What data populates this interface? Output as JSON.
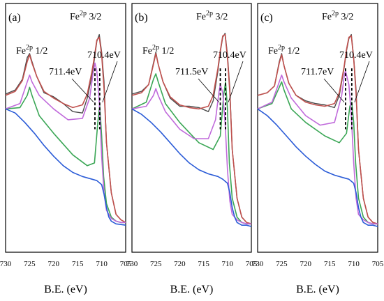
{
  "chart_data": [
    {
      "type": "line",
      "panel_label": "(a)",
      "xlabel": "B.E. (eV)",
      "x_ticks": [
        730,
        725,
        720,
        715,
        710,
        705
      ],
      "xlim": [
        730,
        705
      ],
      "x_reversed": true,
      "annotations": {
        "fe_3_2": {
          "base": "Fe",
          "sup": "2p",
          "suffix": " 3/2"
        },
        "fe_1_2": {
          "base": "Fe",
          "sup": "2p",
          "suffix": " 1/2"
        },
        "peak_high": "711.4eV",
        "peak_low": "710.4eV"
      },
      "peak_markers_eV": [
        711.4,
        710.4
      ],
      "series": [
        {
          "role": "raw-data",
          "color": "#4d4d4d",
          "x": [
            730,
            728,
            726.5,
            725.5,
            725,
            724.5,
            723.5,
            722,
            720,
            718,
            716,
            714,
            713,
            712,
            711.5,
            711,
            710.5,
            710,
            709.5,
            709,
            708,
            707,
            706,
            705
          ],
          "y": [
            0.11,
            0.14,
            0.22,
            0.38,
            0.41,
            0.35,
            0.24,
            0.12,
            0.09,
            0.04,
            -0.02,
            -0.03,
            0.08,
            0.25,
            0.37,
            0.5,
            0.55,
            0.42,
            0.2,
            -0.25,
            -0.62,
            -0.78,
            -0.82,
            -0.84
          ]
        },
        {
          "role": "envelope",
          "color": "#c0504d",
          "x": [
            730,
            728,
            726.5,
            725.5,
            725,
            724.5,
            723.5,
            722,
            720,
            718,
            716,
            714,
            713,
            712,
            711.5,
            711,
            710.5,
            710,
            709.5,
            709,
            708,
            707,
            706,
            705
          ],
          "y": [
            0.1,
            0.13,
            0.21,
            0.35,
            0.4,
            0.34,
            0.24,
            0.13,
            0.08,
            0.04,
            0.01,
            0.03,
            0.11,
            0.28,
            0.39,
            0.51,
            0.53,
            0.4,
            0.15,
            -0.25,
            -0.62,
            -0.78,
            -0.82,
            -0.84
          ]
        },
        {
          "role": "component-710.4",
          "color": "#3aa655",
          "x": [
            730,
            727,
            725.5,
            725,
            724.5,
            723,
            720,
            716,
            713,
            711.5,
            710.8,
            710.4,
            710,
            709.6,
            709,
            708,
            707,
            706,
            705
          ],
          "y": [
            0.0,
            0.01,
            0.1,
            0.16,
            0.1,
            -0.05,
            -0.18,
            -0.34,
            -0.42,
            -0.4,
            -0.1,
            0.03,
            -0.2,
            -0.5,
            -0.7,
            -0.8,
            -0.83,
            -0.84,
            -0.84
          ]
        },
        {
          "role": "component-711.4",
          "color": "#c06adb",
          "x": [
            730,
            727,
            725.5,
            725,
            724.5,
            723,
            720,
            717,
            714,
            712.5,
            711.8,
            711.4,
            711,
            710.5,
            710,
            709.5,
            709,
            708,
            707,
            706,
            705
          ],
          "y": [
            0.0,
            0.04,
            0.2,
            0.25,
            0.2,
            0.1,
            0.0,
            -0.08,
            -0.07,
            0.08,
            0.26,
            0.34,
            0.28,
            0.05,
            -0.35,
            -0.62,
            -0.75,
            -0.81,
            -0.83,
            -0.84,
            -0.84
          ]
        },
        {
          "role": "background",
          "color": "#2a5bd7",
          "x": [
            730,
            728,
            726,
            724,
            722,
            720,
            718,
            716,
            714,
            712,
            711,
            710,
            709.5,
            709,
            708.5,
            708,
            707,
            706,
            705
          ],
          "y": [
            0.0,
            -0.03,
            -0.1,
            -0.18,
            -0.27,
            -0.35,
            -0.42,
            -0.47,
            -0.5,
            -0.52,
            -0.53,
            -0.56,
            -0.63,
            -0.73,
            -0.8,
            -0.83,
            -0.85,
            -0.855,
            -0.86
          ]
        }
      ]
    },
    {
      "type": "line",
      "panel_label": "(b)",
      "xlabel": "B.E. (eV)",
      "x_ticks": [
        730,
        725,
        720,
        715,
        710,
        705
      ],
      "xlim": [
        730,
        705
      ],
      "x_reversed": true,
      "annotations": {
        "fe_3_2": {
          "base": "Fe",
          "sup": "2p",
          "suffix": " 3/2"
        },
        "fe_1_2": {
          "base": "Fe",
          "sup": "2p",
          "suffix": " 1/2"
        },
        "peak_high": "711.5eV",
        "peak_low": "710.4eV"
      },
      "peak_markers_eV": [
        711.5,
        710.4
      ],
      "series": [
        {
          "role": "raw-data",
          "color": "#4d4d4d",
          "x": [
            730,
            728,
            726.5,
            725.5,
            725,
            724.5,
            723.5,
            722,
            720,
            718,
            716,
            714,
            713,
            712,
            711.5,
            711,
            710.5,
            710,
            709.5,
            709,
            708,
            707,
            706,
            705
          ],
          "y": [
            0.11,
            0.13,
            0.18,
            0.34,
            0.42,
            0.33,
            0.2,
            0.08,
            0.02,
            0.02,
            0.01,
            -0.02,
            0.06,
            0.28,
            0.42,
            0.53,
            0.56,
            0.4,
            0.15,
            -0.3,
            -0.66,
            -0.8,
            -0.84,
            -0.85
          ]
        },
        {
          "role": "envelope",
          "color": "#c0504d",
          "x": [
            730,
            728,
            726.5,
            725.5,
            725,
            724.5,
            723.5,
            722,
            720,
            718,
            716,
            714,
            713,
            712,
            711.5,
            711,
            710.5,
            710,
            709.5,
            709,
            708,
            707,
            706,
            705
          ],
          "y": [
            0.1,
            0.12,
            0.18,
            0.33,
            0.41,
            0.33,
            0.2,
            0.09,
            0.03,
            0.01,
            0.0,
            0.02,
            0.1,
            0.3,
            0.43,
            0.54,
            0.55,
            0.38,
            0.12,
            -0.3,
            -0.66,
            -0.8,
            -0.84,
            -0.85
          ]
        },
        {
          "role": "component-710.4",
          "color": "#3aa655",
          "x": [
            730,
            727,
            725.5,
            725,
            724.5,
            723,
            720,
            716,
            713,
            711.5,
            710.8,
            710.4,
            710,
            709.6,
            709,
            708,
            707,
            706,
            705
          ],
          "y": [
            0.0,
            0.05,
            0.22,
            0.26,
            0.2,
            0.04,
            -0.1,
            -0.25,
            -0.3,
            -0.2,
            0.1,
            0.2,
            0.0,
            -0.4,
            -0.66,
            -0.8,
            -0.84,
            -0.85,
            -0.85
          ]
        },
        {
          "role": "component-711.5",
          "color": "#c06adb",
          "x": [
            730,
            727,
            725.5,
            725,
            724.5,
            723,
            720,
            717,
            714,
            712.5,
            711.8,
            711.5,
            711,
            710.5,
            710,
            709.5,
            709,
            708,
            707,
            706,
            705
          ],
          "y": [
            0.0,
            0.02,
            0.1,
            0.15,
            0.1,
            -0.02,
            -0.15,
            -0.22,
            -0.22,
            -0.08,
            0.12,
            0.18,
            0.12,
            -0.1,
            -0.45,
            -0.68,
            -0.78,
            -0.82,
            -0.84,
            -0.85,
            -0.85
          ]
        },
        {
          "role": "background",
          "color": "#2a5bd7",
          "x": [
            730,
            728,
            726,
            724,
            722,
            720,
            718,
            716,
            714,
            712,
            711,
            710,
            709.5,
            709,
            708.5,
            708,
            707,
            706,
            705
          ],
          "y": [
            0.0,
            -0.04,
            -0.1,
            -0.17,
            -0.25,
            -0.33,
            -0.4,
            -0.45,
            -0.48,
            -0.5,
            -0.52,
            -0.55,
            -0.62,
            -0.73,
            -0.8,
            -0.84,
            -0.86,
            -0.86,
            -0.87
          ]
        }
      ]
    },
    {
      "type": "line",
      "panel_label": "(c)",
      "xlabel": "B.E. (eV)",
      "x_ticks": [
        730,
        725,
        720,
        715,
        710,
        705
      ],
      "xlim": [
        730,
        705
      ],
      "x_reversed": true,
      "annotations": {
        "fe_3_2": {
          "base": "Fe",
          "sup": "2p",
          "suffix": " 3/2"
        },
        "fe_1_2": {
          "base": "Fe",
          "sup": "2p",
          "suffix": " 1/2"
        },
        "peak_high": "711.7eV",
        "peak_low": "710.4eV"
      },
      "peak_markers_eV": [
        711.7,
        710.4
      ],
      "series": [
        {
          "role": "raw-data",
          "color": "#4d4d4d",
          "x": [
            730,
            728,
            726.5,
            725.5,
            725,
            724.5,
            723.5,
            722,
            720,
            718,
            716,
            714,
            713,
            712,
            711.5,
            711,
            710.5,
            710,
            709.5,
            709,
            708,
            707,
            706,
            705
          ],
          "y": [
            0.1,
            0.12,
            0.17,
            0.35,
            0.41,
            0.32,
            0.19,
            0.1,
            0.06,
            0.04,
            0.03,
            0.01,
            0.1,
            0.3,
            0.43,
            0.52,
            0.55,
            0.38,
            0.14,
            -0.3,
            -0.66,
            -0.8,
            -0.84,
            -0.85
          ]
        },
        {
          "role": "envelope",
          "color": "#c0504d",
          "x": [
            730,
            728,
            726.5,
            725.5,
            725,
            724.5,
            723.5,
            722,
            720,
            718,
            716,
            714,
            713,
            712,
            711.5,
            711,
            710.5,
            710,
            709.5,
            709,
            708,
            707,
            706,
            705
          ],
          "y": [
            0.1,
            0.12,
            0.17,
            0.34,
            0.4,
            0.32,
            0.19,
            0.1,
            0.05,
            0.03,
            0.02,
            0.04,
            0.12,
            0.31,
            0.44,
            0.53,
            0.54,
            0.37,
            0.11,
            -0.3,
            -0.66,
            -0.8,
            -0.84,
            -0.85
          ]
        },
        {
          "role": "component-710.4",
          "color": "#3aa655",
          "x": [
            730,
            727,
            725.5,
            725,
            724.5,
            723,
            720,
            716,
            713,
            711.5,
            710.8,
            710.4,
            710,
            709.6,
            709,
            708,
            707,
            706,
            705
          ],
          "y": [
            0.0,
            0.04,
            0.16,
            0.2,
            0.14,
            0.0,
            -0.1,
            -0.2,
            -0.25,
            -0.18,
            0.02,
            0.05,
            -0.1,
            -0.4,
            -0.66,
            -0.8,
            -0.84,
            -0.85,
            -0.85
          ]
        },
        {
          "role": "component-711.7",
          "color": "#c06adb",
          "x": [
            730,
            727,
            725.5,
            725,
            724.5,
            723,
            720,
            717,
            714,
            712.5,
            711.9,
            711.7,
            711,
            710.5,
            710,
            709.5,
            709,
            708,
            707,
            706,
            705
          ],
          "y": [
            0.0,
            0.05,
            0.2,
            0.25,
            0.2,
            0.08,
            -0.05,
            -0.12,
            -0.1,
            0.1,
            0.26,
            0.28,
            0.18,
            -0.05,
            -0.4,
            -0.66,
            -0.78,
            -0.82,
            -0.84,
            -0.85,
            -0.85
          ]
        },
        {
          "role": "background",
          "color": "#2a5bd7",
          "x": [
            730,
            728,
            726,
            724,
            722,
            720,
            718,
            716,
            714,
            712,
            711,
            710,
            709.5,
            709,
            708.5,
            708,
            707,
            706,
            705
          ],
          "y": [
            0.0,
            -0.05,
            -0.12,
            -0.2,
            -0.28,
            -0.35,
            -0.41,
            -0.46,
            -0.49,
            -0.51,
            -0.52,
            -0.55,
            -0.62,
            -0.73,
            -0.8,
            -0.84,
            -0.86,
            -0.86,
            -0.87
          ]
        }
      ]
    }
  ]
}
